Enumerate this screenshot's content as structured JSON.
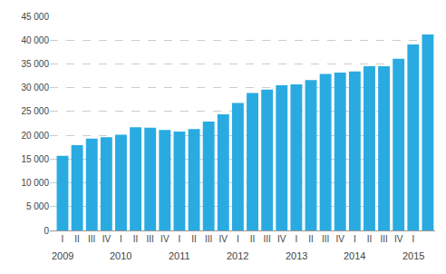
{
  "chart_data": {
    "type": "bar",
    "categories": [
      "I",
      "II",
      "III",
      "IV",
      "I",
      "II",
      "III",
      "IV",
      "I",
      "II",
      "III",
      "IV",
      "I",
      "II",
      "III",
      "IV",
      "I",
      "II",
      "III",
      "IV",
      "I",
      "II",
      "III",
      "IV",
      "I",
      null
    ],
    "values": [
      15700,
      17900,
      19300,
      19600,
      20100,
      21700,
      21600,
      21100,
      20800,
      21300,
      22900,
      24400,
      26800,
      28900,
      29600,
      30500,
      30700,
      31600,
      32900,
      33200,
      33400,
      34500,
      34500,
      36100,
      39100,
      41200
    ],
    "color": "#29ABE2",
    "ylim": [
      0,
      45000
    ],
    "yticks": [
      0,
      {
        "value": 5000,
        "label": "5 000"
      },
      {
        "value": 10000,
        "label": "10 000"
      },
      {
        "value": 15000,
        "label": "15 000"
      },
      {
        "value": 20000,
        "label": "20 000"
      },
      {
        "value": 25000,
        "label": "25 000"
      },
      {
        "value": 30000,
        "label": "30 000"
      },
      {
        "value": 35000,
        "label": "35 000"
      },
      {
        "value": 40000,
        "label": "40 000"
      },
      {
        "value": 45000,
        "label": "45 000"
      }
    ],
    "grid": true,
    "annotations": [
      {
        "text": "2009",
        "x": 0
      },
      {
        "text": "2010",
        "x": 4
      },
      {
        "text": "2011",
        "x": 8
      },
      {
        "text": "2012",
        "x": 12
      },
      {
        "text": "2013",
        "x": 16
      },
      {
        "text": "2014",
        "x": 20
      },
      {
        "text": "2015",
        "x": 24
      }
    ]
  }
}
